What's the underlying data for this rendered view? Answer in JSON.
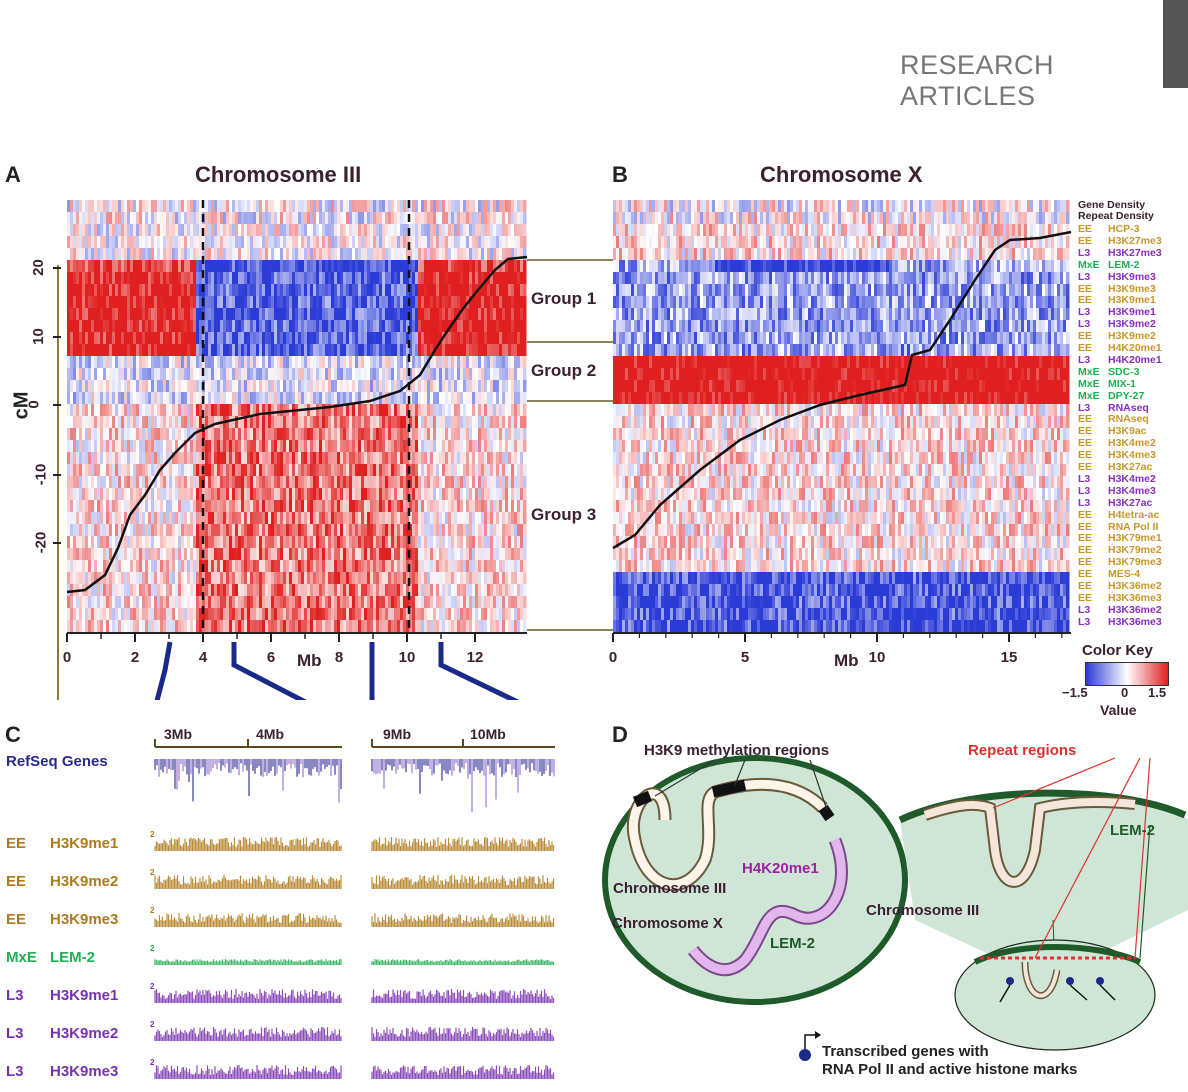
{
  "header": {
    "section": "RESEARCH ARTICLES"
  },
  "panels": {
    "A": {
      "label": "A",
      "title": "Chromosome III",
      "ylabel": "cM",
      "xlabel": "Mb",
      "yticks": [
        "20",
        "10",
        "0",
        "-10",
        "-20"
      ],
      "xticks": [
        "0",
        "2",
        "4",
        "6",
        "8",
        "10",
        "12"
      ]
    },
    "B": {
      "label": "B",
      "title": "Chromosome X",
      "xlabel": "Mb",
      "xticks": [
        "0",
        "5",
        "10",
        "15"
      ]
    },
    "C": {
      "label": "C"
    },
    "D": {
      "label": "D"
    }
  },
  "groups": [
    "Group 1",
    "Group 2",
    "Group 3"
  ],
  "density_labels": [
    "Gene Density",
    "Repeat Density"
  ],
  "tracks": [
    {
      "stage": "EE",
      "mark": "HCP-3",
      "color": "#c8962a"
    },
    {
      "stage": "EE",
      "mark": "H3K27me3",
      "color": "#c8962a"
    },
    {
      "stage": "L3",
      "mark": "H3K27me3",
      "color": "#8a2fc0"
    },
    {
      "stage": "MxE",
      "mark": "LEM-2",
      "color": "#1fb050"
    },
    {
      "stage": "L3",
      "mark": "H3K9me3",
      "color": "#8a2fc0"
    },
    {
      "stage": "EE",
      "mark": "H3K9me3",
      "color": "#c8962a"
    },
    {
      "stage": "EE",
      "mark": "H3K9me1",
      "color": "#c8962a"
    },
    {
      "stage": "L3",
      "mark": "H3K9me1",
      "color": "#8a2fc0"
    },
    {
      "stage": "L3",
      "mark": "H3K9me2",
      "color": "#8a2fc0"
    },
    {
      "stage": "EE",
      "mark": "H3K9me2",
      "color": "#c8962a"
    },
    {
      "stage": "EE",
      "mark": "H4K20me1",
      "color": "#c8962a"
    },
    {
      "stage": "L3",
      "mark": "H4K20me1",
      "color": "#8a2fc0"
    },
    {
      "stage": "MxE",
      "mark": "SDC-3",
      "color": "#1fb050"
    },
    {
      "stage": "MxE",
      "mark": "MIX-1",
      "color": "#1fb050"
    },
    {
      "stage": "MxE",
      "mark": "DPY-27",
      "color": "#1fb050"
    },
    {
      "stage": "L3",
      "mark": "RNAseq",
      "color": "#8a2fc0"
    },
    {
      "stage": "EE",
      "mark": "RNAseq",
      "color": "#c8962a"
    },
    {
      "stage": "EE",
      "mark": "H3K9ac",
      "color": "#c8962a"
    },
    {
      "stage": "EE",
      "mark": "H3K4me2",
      "color": "#c8962a"
    },
    {
      "stage": "EE",
      "mark": "H3K4me3",
      "color": "#c8962a"
    },
    {
      "stage": "EE",
      "mark": "H3K27ac",
      "color": "#c8962a"
    },
    {
      "stage": "L3",
      "mark": "H3K4me2",
      "color": "#8a2fc0"
    },
    {
      "stage": "L3",
      "mark": "H3K4me3",
      "color": "#8a2fc0"
    },
    {
      "stage": "L3",
      "mark": "H3K27ac",
      "color": "#8a2fc0"
    },
    {
      "stage": "EE",
      "mark": "H4tetra-ac",
      "color": "#c8962a"
    },
    {
      "stage": "EE",
      "mark": "RNA Pol II",
      "color": "#c8962a"
    },
    {
      "stage": "EE",
      "mark": "H3K79me1",
      "color": "#c8962a"
    },
    {
      "stage": "EE",
      "mark": "H3K79me2",
      "color": "#c8962a"
    },
    {
      "stage": "EE",
      "mark": "H3K79me3",
      "color": "#c8962a"
    },
    {
      "stage": "EE",
      "mark": "MES-4",
      "color": "#c8962a"
    },
    {
      "stage": "EE",
      "mark": "H3K36me2",
      "color": "#c8962a"
    },
    {
      "stage": "EE",
      "mark": "H3K36me3",
      "color": "#c8962a"
    },
    {
      "stage": "L3",
      "mark": "H3K36me2",
      "color": "#8a2fc0"
    },
    {
      "stage": "L3",
      "mark": "H3K36me3",
      "color": "#8a2fc0"
    }
  ],
  "color_key": {
    "title": "Color Key",
    "ticks": [
      "−1.5",
      "0",
      "1.5"
    ],
    "label": "Value",
    "colors": [
      "#2b3bd6",
      "#ffffff",
      "#e02020"
    ]
  },
  "panel_c": {
    "scale_left": [
      "3Mb",
      "4Mb"
    ],
    "scale_right": [
      "9Mb",
      "10Mb"
    ],
    "refseq_label": "RefSeq Genes",
    "rows": [
      {
        "stage": "EE",
        "mark": "H3K9me1",
        "color": "#b07a1a"
      },
      {
        "stage": "EE",
        "mark": "H3K9me2",
        "color": "#b07a1a"
      },
      {
        "stage": "EE",
        "mark": "H3K9me3",
        "color": "#b07a1a"
      },
      {
        "stage": "MxE",
        "mark": "LEM-2",
        "color": "#1fb050"
      },
      {
        "stage": "L3",
        "mark": "H3K9me1",
        "color": "#7a30b0"
      },
      {
        "stage": "L3",
        "mark": "H3K9me2",
        "color": "#7a30b0"
      },
      {
        "stage": "L3",
        "mark": "H3K9me3",
        "color": "#7a30b0"
      }
    ],
    "y_tick": "2"
  },
  "panel_d": {
    "h3k9_label": "H3K9 methylation regions",
    "repeat_label": "Repeat regions",
    "chr3_label": "Chromosome III",
    "chrx_label": "Chromosome X",
    "h4k20_label": "H4K20me1",
    "lem2_left": "LEM-2",
    "lem2_right": "LEM-2",
    "chr3_right_label": "Chromosome III",
    "legend_line1": "Transcribed genes with",
    "legend_line2": "RNA Pol II and active histone marks"
  }
}
